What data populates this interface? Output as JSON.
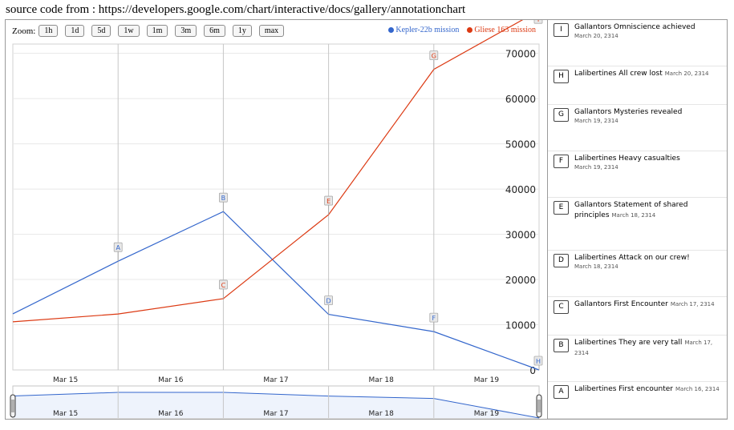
{
  "source_note": "source code from : https://developers.google.com/chart/interactive/docs/gallery/annotationchart",
  "zoom": {
    "label": "Zoom:",
    "buttons": [
      "1h",
      "1d",
      "5d",
      "1w",
      "1m",
      "3m",
      "6m",
      "1y",
      "max"
    ]
  },
  "colors": {
    "kepler": "#3366cc",
    "gliese": "#dc3912"
  },
  "chart_data": {
    "type": "line",
    "title": "",
    "xlabel": "",
    "ylabel": "",
    "x": [
      "2314-03-15",
      "2314-03-16",
      "2314-03-17",
      "2314-03-18",
      "2314-03-19",
      "2314-03-20"
    ],
    "x_ticks": [
      "Mar 15",
      "Mar 16",
      "Mar 17",
      "Mar 18",
      "Mar 19"
    ],
    "y_ticks": [
      "0",
      "10000",
      "20000",
      "30000",
      "40000",
      "50000",
      "60000",
      "70000"
    ],
    "ylim": [
      0,
      71000
    ],
    "grid": true,
    "legend_position": "top-right",
    "series": [
      {
        "name": "Kepler-22b mission",
        "color": "#3366cc",
        "values": [
          12400,
          24045,
          35022,
          12284,
          8476,
          0
        ],
        "annotations": [
          "",
          "A",
          "B",
          "D",
          "F",
          "H"
        ]
      },
      {
        "name": "Gliese 163 mission",
        "color": "#dc3912",
        "values": [
          10645,
          12374,
          15766,
          34334,
          66467,
          79463
        ],
        "annotations": [
          "",
          "",
          "C",
          "E",
          "G",
          "I"
        ]
      }
    ],
    "range_selector_x_ticks": [
      "Mar 15",
      "Mar 16",
      "Mar 17",
      "Mar 18",
      "Mar 19"
    ]
  },
  "annotations": [
    {
      "letter": "I",
      "text": "Gallantors Omniscience achieved",
      "date": "March 20, 2314"
    },
    {
      "letter": "H",
      "text": "Lalibertines All crew lost",
      "date": "March 20, 2314"
    },
    {
      "letter": "G",
      "text": "Gallantors Mysteries revealed",
      "date": "March 19, 2314"
    },
    {
      "letter": "F",
      "text": "Lalibertines Heavy casualties",
      "date": "March 19, 2314"
    },
    {
      "letter": "E",
      "text": "Gallantors Statement of shared principles",
      "date": "March 18, 2314"
    },
    {
      "letter": "D",
      "text": "Lalibertines Attack on our crew!",
      "date": "March 18, 2314"
    },
    {
      "letter": "C",
      "text": "Gallantors First Encounter",
      "date": "March 17, 2314"
    },
    {
      "letter": "B",
      "text": "Lalibertines They are very tall",
      "date": "March 17, 2314"
    },
    {
      "letter": "A",
      "text": "Lalibertines First encounter",
      "date": "March 16, 2314"
    }
  ]
}
